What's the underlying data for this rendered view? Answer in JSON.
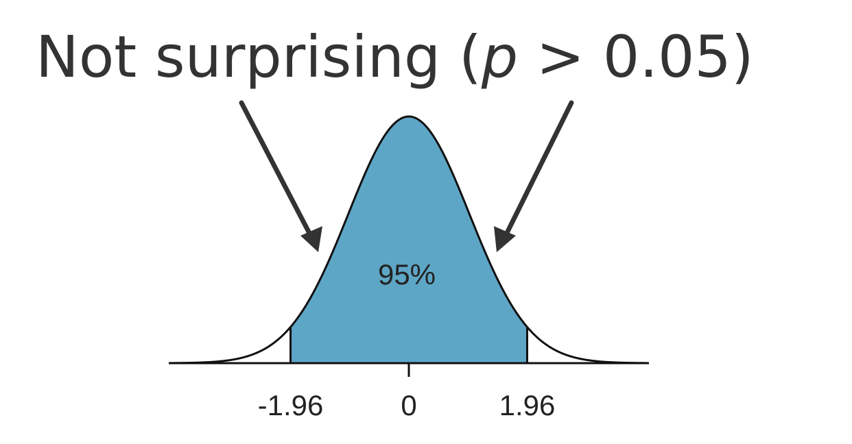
{
  "slide": {
    "title_prefix": "Not surprising (",
    "title_variable": "p",
    "title_suffix": " > 0.05)"
  },
  "chart_data": {
    "type": "area",
    "distribution": "standard normal",
    "xlim": [
      -4,
      4
    ],
    "shaded_interval": [
      -1.96,
      1.96
    ],
    "shaded_label": "95%",
    "tick_labels": [
      "-1.96",
      "0",
      "1.96"
    ],
    "tick_values": [
      -1.96,
      0,
      1.96
    ],
    "annotation_arrows": 2
  },
  "colors": {
    "shaded_fill": "#5ea6c6",
    "curve": "#111111",
    "arrow": "#333333",
    "title": "#333333"
  }
}
